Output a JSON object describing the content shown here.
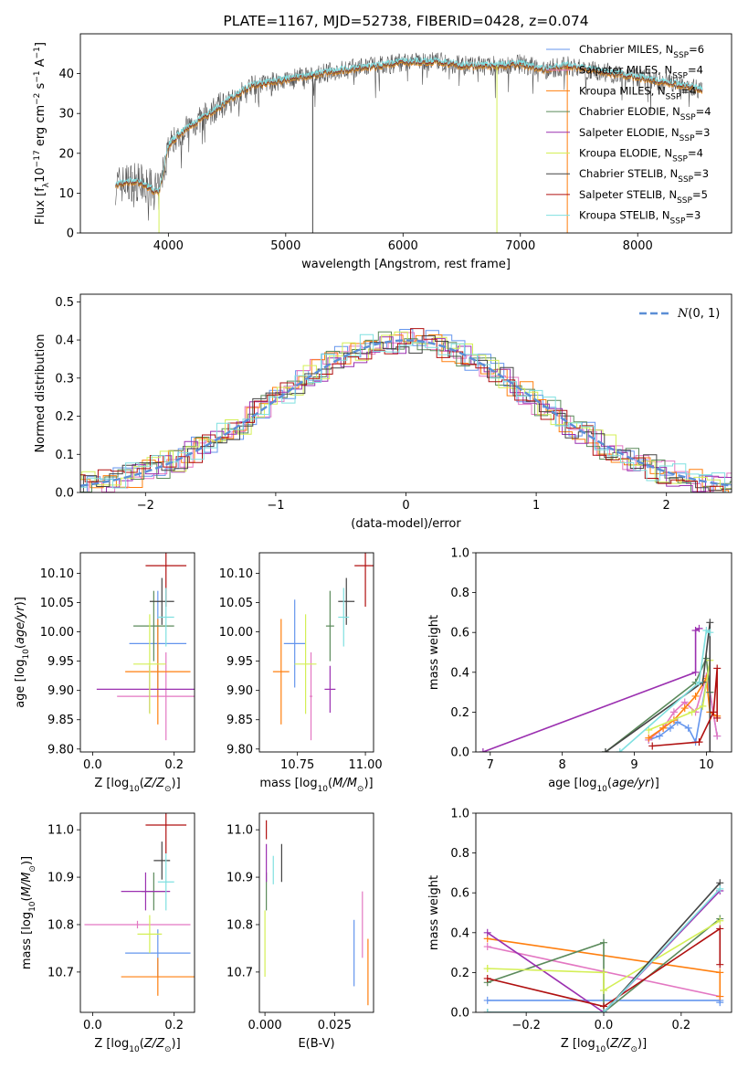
{
  "colors": {
    "Chabrier MILES": "#6495ed",
    "Salpeter MILES": "#e377c2",
    "Kroupa MILES": "#ff7f0e",
    "Chabrier ELODIE": "#5b8a5b",
    "Salpeter ELODIE": "#9b30b0",
    "Kroupa ELODIE": "#d4ef56",
    "Chabrier STELIB": "#444444",
    "Salpeter STELIB": "#b01010",
    "Kroupa STELIB": "#7fe0e0",
    "normal": "#5b8ed6"
  },
  "chart_data": [
    {
      "id": "spectrum",
      "type": "line",
      "title": "PLATE=1167, MJD=52738, FIBERID=0428, z=0.074",
      "xlabel": "wavelength [Angstrom, rest frame]",
      "ylabel": "Flux [f_λ 10^-17 erg cm^-2 s^-1 A^-1]",
      "xlim": [
        3250,
        8800
      ],
      "ylim": [
        0,
        50
      ],
      "xticks": [
        4000,
        5000,
        6000,
        7000,
        8000
      ],
      "yticks": [
        0,
        10,
        20,
        30,
        40
      ],
      "legend_position": "top-right",
      "legend": [
        {
          "model": "Chabrier MILES",
          "n": "6"
        },
        {
          "model": "Salpeter MILES",
          "n": "4"
        },
        {
          "model": "Kroupa MILES",
          "n": "4"
        },
        {
          "model": "Chabrier ELODIE",
          "n": "4"
        },
        {
          "model": "Salpeter ELODIE",
          "n": "3"
        },
        {
          "model": "Kroupa ELODIE",
          "n": "4"
        },
        {
          "model": "Chabrier STELIB",
          "n": "3"
        },
        {
          "model": "Salpeter STELIB",
          "n": "5"
        },
        {
          "model": "Kroupa STELIB",
          "n": "3"
        }
      ],
      "continuum_anchors": [
        [
          3550,
          12
        ],
        [
          3700,
          13
        ],
        [
          3800,
          12
        ],
        [
          3920,
          10
        ],
        [
          4000,
          22
        ],
        [
          4100,
          25
        ],
        [
          4300,
          29
        ],
        [
          4500,
          33
        ],
        [
          4700,
          37
        ],
        [
          4900,
          38
        ],
        [
          5100,
          39
        ],
        [
          5300,
          40
        ],
        [
          5500,
          41
        ],
        [
          5800,
          42
        ],
        [
          6000,
          43
        ],
        [
          6300,
          43
        ],
        [
          6500,
          42
        ],
        [
          6800,
          42
        ],
        [
          7000,
          42.5
        ],
        [
          7200,
          41
        ],
        [
          7400,
          42
        ],
        [
          7600,
          41
        ],
        [
          7800,
          40
        ],
        [
          8000,
          39
        ],
        [
          8200,
          38
        ],
        [
          8400,
          37
        ],
        [
          8550,
          36
        ]
      ],
      "spike_lines": [
        [
          3920,
          "Kroupa ELODIE"
        ],
        [
          5230,
          "Chabrier STELIB"
        ],
        [
          6800,
          "Kroupa ELODIE"
        ],
        [
          7400,
          "Kroupa MILES"
        ]
      ]
    },
    {
      "id": "residuals",
      "type": "histogram",
      "xlabel": "(data-model)/error",
      "ylabel": "Normed distribution",
      "xlim": [
        -2.5,
        2.5
      ],
      "ylim": [
        0,
        0.52
      ],
      "xticks": [
        -2,
        -1,
        0,
        1,
        2
      ],
      "yticks": [
        0.0,
        0.1,
        0.2,
        0.3,
        0.4,
        0.5
      ],
      "bin_width": 0.1,
      "legend_label": "N(0, 1)",
      "legend_position": "top-right"
    },
    {
      "id": "age_vs_Z",
      "type": "errorbar",
      "xlabel": "Z [log10(Z/Z☉)]",
      "ylabel": "age  [log10(age/yr)]",
      "xlim": [
        -0.03,
        0.25
      ],
      "ylim": [
        9.795,
        10.135
      ],
      "xticks": [
        0.0,
        0.2
      ],
      "yticks": [
        9.8,
        9.85,
        9.9,
        9.95,
        10.0,
        10.05,
        10.1
      ],
      "points": [
        {
          "model": "Chabrier MILES",
          "x": 0.16,
          "xerr": 0.07,
          "y": 9.98,
          "yerr": 0.09
        },
        {
          "model": "Salpeter MILES",
          "x": 0.18,
          "xerr": 0.12,
          "y": 9.89,
          "yerr": 0.075
        },
        {
          "model": "Kroupa MILES",
          "x": 0.16,
          "xerr": 0.08,
          "y": 9.932,
          "yerr": 0.09
        },
        {
          "model": "Chabrier ELODIE",
          "x": 0.15,
          "xerr": 0.05,
          "y": 10.01,
          "yerr": 0.06
        },
        {
          "model": "Salpeter ELODIE",
          "x": 0.14,
          "xerr": 0.13,
          "y": 9.902,
          "yerr": 0.04
        },
        {
          "model": "Kroupa ELODIE",
          "x": 0.14,
          "xerr": 0.04,
          "y": 9.945,
          "yerr": 0.085
        },
        {
          "model": "Chabrier STELIB",
          "x": 0.17,
          "xerr": 0.03,
          "y": 10.052,
          "yerr": 0.04
        },
        {
          "model": "Salpeter STELIB",
          "x": 0.18,
          "xerr": 0.05,
          "y": 10.113,
          "yerr": 0.07
        },
        {
          "model": "Kroupa STELIB",
          "x": 0.18,
          "xerr": 0.02,
          "y": 10.025,
          "yerr": 0.05
        }
      ]
    },
    {
      "id": "age_vs_mass",
      "type": "errorbar",
      "xlabel": "mass [log10(M/M☉)]",
      "ylabel": "",
      "xlim": [
        10.61,
        11.03
      ],
      "ylim": [
        9.795,
        10.135
      ],
      "xticks": [
        10.75,
        11.0
      ],
      "yticks": [
        9.8,
        9.85,
        9.9,
        9.95,
        10.0,
        10.05,
        10.1
      ],
      "points": [
        {
          "model": "Chabrier MILES",
          "x": 10.74,
          "xerr": 0.04,
          "y": 9.98,
          "yerr": 0.075
        },
        {
          "model": "Salpeter MILES",
          "x": 10.8,
          "xerr": 0.005,
          "y": 9.89,
          "yerr": 0.075
        },
        {
          "model": "Kroupa MILES",
          "x": 10.69,
          "xerr": 0.03,
          "y": 9.932,
          "yerr": 0.09
        },
        {
          "model": "Chabrier ELODIE",
          "x": 10.87,
          "xerr": 0.015,
          "y": 10.01,
          "yerr": 0.06
        },
        {
          "model": "Salpeter ELODIE",
          "x": 10.87,
          "xerr": 0.02,
          "y": 9.902,
          "yerr": 0.04
        },
        {
          "model": "Kroupa ELODIE",
          "x": 10.78,
          "xerr": 0.04,
          "y": 9.945,
          "yerr": 0.085
        },
        {
          "model": "Chabrier STELIB",
          "x": 10.93,
          "xerr": 0.03,
          "y": 10.052,
          "yerr": 0.04
        },
        {
          "model": "Salpeter STELIB",
          "x": 11.0,
          "xerr": 0.04,
          "y": 10.113,
          "yerr": 0.07
        },
        {
          "model": "Kroupa STELIB",
          "x": 10.92,
          "xerr": 0.02,
          "y": 10.025,
          "yerr": 0.05
        }
      ]
    },
    {
      "id": "weight_vs_age",
      "type": "line",
      "xlabel": "age  [log10(age/yr)]",
      "ylabel": "mass weight",
      "xlim": [
        6.8,
        10.35
      ],
      "ylim": [
        0,
        1
      ],
      "xticks": [
        7,
        8,
        9,
        10
      ],
      "yticks": [
        0.0,
        0.2,
        0.4,
        0.6,
        0.8,
        1.0
      ],
      "series": [
        {
          "model": "Chabrier MILES",
          "x": [
            9.2,
            9.35,
            9.5,
            9.6,
            9.75,
            9.85,
            10.0,
            10.05,
            10.15
          ],
          "y": [
            0.06,
            0.08,
            0.12,
            0.15,
            0.12,
            0.05,
            0.35,
            0.3,
            0.08
          ]
        },
        {
          "model": "Salpeter MILES",
          "x": [
            9.2,
            9.4,
            9.55,
            9.7,
            9.85,
            10.0,
            10.05,
            10.15
          ],
          "y": [
            0.06,
            0.12,
            0.2,
            0.25,
            0.2,
            0.38,
            0.3,
            0.08
          ]
        },
        {
          "model": "Kroupa MILES",
          "x": [
            9.2,
            9.4,
            9.55,
            9.7,
            9.85,
            10.0,
            10.05,
            10.15
          ],
          "y": [
            0.07,
            0.12,
            0.16,
            0.22,
            0.28,
            0.37,
            0.2,
            0.18
          ]
        },
        {
          "model": "Chabrier ELODIE",
          "x": [
            8.6,
            9.85,
            10.0,
            10.05
          ],
          "y": [
            0.0,
            0.35,
            0.47,
            0.3
          ]
        },
        {
          "model": "Salpeter ELODIE",
          "x": [
            6.9,
            9.85,
            9.85,
            9.9
          ],
          "y": [
            0.0,
            0.4,
            0.61,
            0.62
          ]
        },
        {
          "model": "Kroupa ELODIE",
          "x": [
            9.2,
            9.8,
            9.95,
            10.05
          ],
          "y": [
            0.11,
            0.2,
            0.23,
            0.46
          ]
        },
        {
          "model": "Chabrier STELIB",
          "x": [
            8.6,
            9.95,
            10.05,
            10.05
          ],
          "y": [
            0.0,
            0.35,
            0.65,
            0.0
          ]
        },
        {
          "model": "Salpeter STELIB",
          "x": [
            9.25,
            9.9,
            10.1,
            10.15,
            10.15
          ],
          "y": [
            0.03,
            0.05,
            0.2,
            0.42,
            0.17
          ]
        },
        {
          "model": "Kroupa STELIB",
          "x": [
            8.8,
            9.9,
            10.0,
            10.05
          ],
          "y": [
            0.0,
            0.35,
            0.61,
            0.6
          ]
        }
      ]
    },
    {
      "id": "mass_vs_Z",
      "type": "errorbar",
      "xlabel": "Z [log10(Z/Z☉)]",
      "ylabel": "mass [log10(M/M☉)]",
      "xlim": [
        -0.03,
        0.25
      ],
      "ylim": [
        10.615,
        11.035
      ],
      "xticks": [
        0.0,
        0.2
      ],
      "yticks": [
        10.7,
        10.8,
        10.9,
        11.0
      ],
      "points": [
        {
          "model": "Chabrier MILES",
          "x": 0.16,
          "xerr": 0.08,
          "y": 10.74,
          "yerr": 0.05
        },
        {
          "model": "Salpeter MILES",
          "x": 0.11,
          "xerr": 0.13,
          "y": 10.8,
          "yerr": 0.008
        },
        {
          "model": "Kroupa MILES",
          "x": 0.16,
          "xerr": 0.09,
          "y": 10.69,
          "yerr": 0.04
        },
        {
          "model": "Chabrier ELODIE",
          "x": 0.15,
          "xerr": 0.03,
          "y": 10.87,
          "yerr": 0.04
        },
        {
          "model": "Salpeter ELODIE",
          "x": 0.13,
          "xerr": 0.06,
          "y": 10.87,
          "yerr": 0.04
        },
        {
          "model": "Kroupa ELODIE",
          "x": 0.14,
          "xerr": 0.03,
          "y": 10.78,
          "yerr": 0.04
        },
        {
          "model": "Chabrier STELIB",
          "x": 0.17,
          "xerr": 0.02,
          "y": 10.935,
          "yerr": 0.04
        },
        {
          "model": "Salpeter STELIB",
          "x": 0.18,
          "xerr": 0.05,
          "y": 11.01,
          "yerr": 0.06
        },
        {
          "model": "Kroupa STELIB",
          "x": 0.18,
          "xerr": 0.02,
          "y": 10.89,
          "yerr": 0.06
        }
      ]
    },
    {
      "id": "mass_vs_EBV",
      "type": "errorbar",
      "xlabel": "E(B-V)",
      "ylabel": "",
      "xlim": [
        -0.002,
        0.039
      ],
      "ylim": [
        10.615,
        11.035
      ],
      "xticks": [
        0.0,
        0.025
      ],
      "xtick_labels": [
        "0.000",
        "0.025"
      ],
      "yticks": [
        10.7,
        10.8,
        10.9,
        11.0
      ],
      "points": [
        {
          "model": "Chabrier MILES",
          "x": 0.032,
          "xerr": 0,
          "y": 10.74,
          "yerr": 0.07
        },
        {
          "model": "Salpeter MILES",
          "x": 0.035,
          "xerr": 0,
          "y": 10.8,
          "yerr": 0.07
        },
        {
          "model": "Kroupa MILES",
          "x": 0.037,
          "xerr": 0,
          "y": 10.7,
          "yerr": 0.07
        },
        {
          "model": "Chabrier ELODIE",
          "x": 0.0005,
          "xerr": 0,
          "y": 10.87,
          "yerr": 0.04
        },
        {
          "model": "Salpeter ELODIE",
          "x": 0.0005,
          "xerr": 0,
          "y": 10.93,
          "yerr": 0.04
        },
        {
          "model": "Kroupa ELODIE",
          "x": 0.0,
          "xerr": 0,
          "y": 10.76,
          "yerr": 0.07
        },
        {
          "model": "Chabrier STELIB",
          "x": 0.006,
          "xerr": 0,
          "y": 10.93,
          "yerr": 0.04
        },
        {
          "model": "Salpeter STELIB",
          "x": 0.0005,
          "xerr": 0,
          "y": 11.0,
          "yerr": 0.02
        },
        {
          "model": "Kroupa STELIB",
          "x": 0.003,
          "xerr": 0,
          "y": 10.915,
          "yerr": 0.03
        }
      ]
    },
    {
      "id": "weight_vs_Z",
      "type": "line",
      "xlabel": "Z [log10(Z/Z☉)]",
      "ylabel": "mass weight",
      "xlim": [
        -0.33,
        0.33
      ],
      "ylim": [
        0,
        1
      ],
      "xticks": [
        -0.2,
        0.0,
        0.2
      ],
      "yticks": [
        0.0,
        0.2,
        0.4,
        0.6,
        0.8,
        1.0
      ],
      "series": [
        {
          "model": "Chabrier MILES",
          "x": [
            -0.3,
            0.3,
            0.3
          ],
          "y": [
            0.06,
            0.06,
            0.05
          ]
        },
        {
          "model": "Salpeter MILES",
          "x": [
            -0.3,
            0.3
          ],
          "y": [
            0.33,
            0.08
          ]
        },
        {
          "model": "Kroupa MILES",
          "x": [
            -0.3,
            0.3,
            0.3
          ],
          "y": [
            0.37,
            0.2,
            0.08
          ]
        },
        {
          "model": "Chabrier ELODIE",
          "x": [
            -0.3,
            0.0,
            0.0,
            0.3
          ],
          "y": [
            0.15,
            0.35,
            0.0,
            0.47
          ]
        },
        {
          "model": "Salpeter ELODIE",
          "x": [
            -0.3,
            0.0,
            0.3
          ],
          "y": [
            0.4,
            0.0,
            0.61
          ]
        },
        {
          "model": "Kroupa ELODIE",
          "x": [
            -0.3,
            -0.3,
            0.0,
            0.0,
            0.3
          ],
          "y": [
            0.22,
            0.22,
            0.2,
            0.11,
            0.46
          ]
        },
        {
          "model": "Chabrier STELIB",
          "x": [
            -0.3,
            0.0,
            0.3
          ],
          "y": [
            0.0,
            0.0,
            0.65
          ]
        },
        {
          "model": "Salpeter STELIB",
          "x": [
            -0.3,
            0.0,
            0.3,
            0.3
          ],
          "y": [
            0.17,
            0.03,
            0.42,
            0.24
          ]
        },
        {
          "model": "Kroupa STELIB",
          "x": [
            -0.3,
            0.0,
            0.3
          ],
          "y": [
            0.0,
            0.0,
            0.62
          ]
        }
      ]
    }
  ]
}
